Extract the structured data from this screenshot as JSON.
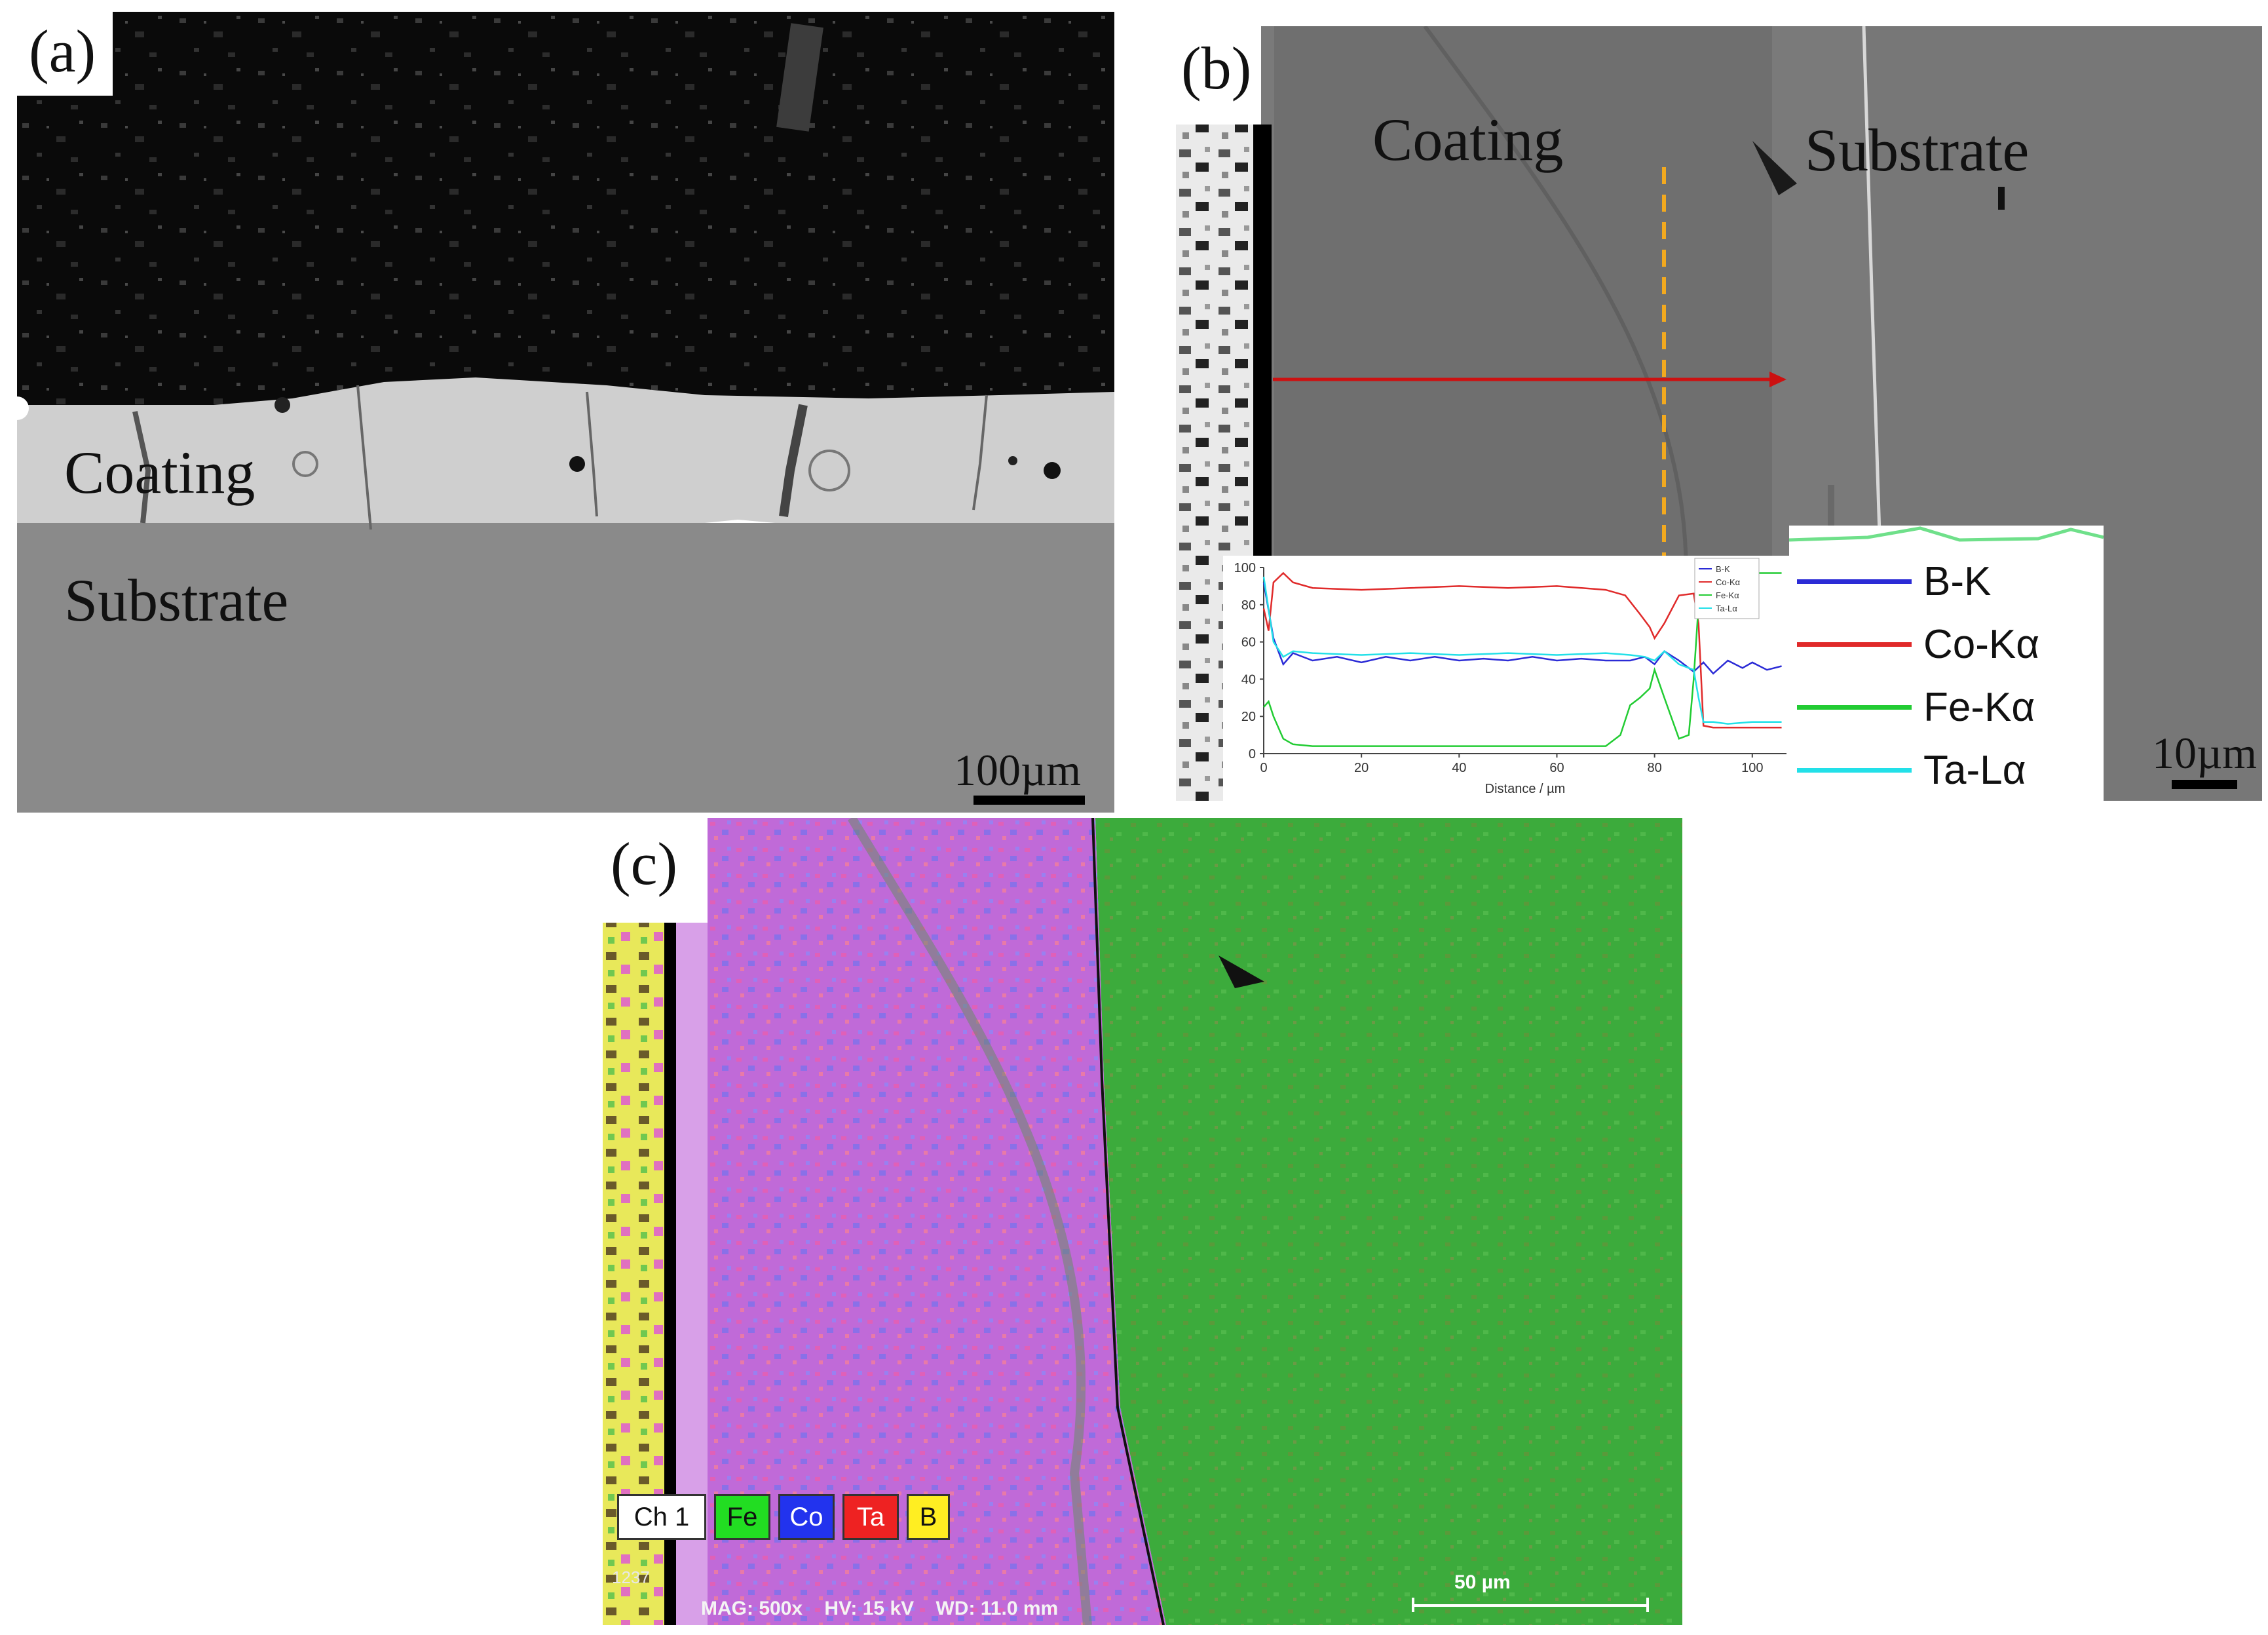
{
  "panel_a": {
    "label": "(a)",
    "coating_label": "Coating",
    "substrate_label": "Substrate",
    "scale_text": "100µm"
  },
  "panel_b": {
    "label": "(b)",
    "coating_label": "Coating",
    "substrate_label": "Substrate",
    "scale_text": "10µm",
    "legend": [
      {
        "name": "B-K",
        "color": "#2b2bd6"
      },
      {
        "name": "Co-Kα",
        "color": "#e02a2a"
      },
      {
        "name": "Fe-Kα",
        "color": "#22cc33"
      },
      {
        "name": "Ta-Lα",
        "color": "#22e0e8"
      }
    ],
    "colors": {
      "scan_arrow": "#cc1111",
      "interface_line": "#f2a91f"
    }
  },
  "panel_c": {
    "label": "(c)",
    "channels": [
      {
        "name": "Ch 1",
        "color": "#ffffff"
      },
      {
        "name": "Fe",
        "color": "#22dd22"
      },
      {
        "name": "Co",
        "color": "#2233ee"
      },
      {
        "name": "Ta",
        "color": "#ee2222"
      },
      {
        "name": "B",
        "color": "#ffee22"
      }
    ],
    "info_id": "1237",
    "info_text": "MAG: 500x    HV: 15 kV    WD: 11.0 mm",
    "scale_text": "50 µm"
  },
  "chart_data": {
    "type": "line",
    "xlabel": "Distance / µm",
    "ylabel": "",
    "xlim": [
      0,
      107
    ],
    "ylim": [
      0,
      100
    ],
    "xticks": [
      0,
      20,
      40,
      60,
      80,
      100
    ],
    "yticks": [
      0,
      20,
      40,
      60,
      80,
      100
    ],
    "legend_position": "top-right",
    "series": [
      {
        "name": "B-K",
        "color": "#2b2bd6",
        "x": [
          0,
          2,
          4,
          6,
          10,
          15,
          20,
          25,
          30,
          35,
          40,
          45,
          50,
          55,
          60,
          65,
          70,
          75,
          78,
          80,
          82,
          85,
          88,
          90,
          92,
          95,
          98,
          100,
          103,
          106
        ],
        "y": [
          92,
          62,
          48,
          54,
          50,
          52,
          49,
          52,
          50,
          52,
          50,
          51,
          50,
          52,
          50,
          51,
          50,
          50,
          52,
          48,
          55,
          50,
          44,
          49,
          43,
          50,
          46,
          49,
          45,
          47
        ]
      },
      {
        "name": "Co-Kα",
        "color": "#e02a2a",
        "x": [
          0,
          1,
          2,
          4,
          6,
          10,
          20,
          30,
          40,
          50,
          60,
          70,
          74,
          77,
          79,
          80,
          82,
          85,
          88,
          89,
          90,
          92,
          95,
          100,
          106
        ],
        "y": [
          78,
          66,
          92,
          97,
          92,
          89,
          88,
          89,
          90,
          89,
          90,
          88,
          85,
          75,
          68,
          62,
          70,
          85,
          86,
          70,
          15,
          14,
          14,
          14,
          14
        ]
      },
      {
        "name": "Fe-Kα",
        "color": "#22cc33",
        "x": [
          0,
          1,
          2,
          4,
          6,
          10,
          20,
          30,
          40,
          50,
          60,
          70,
          73,
          75,
          77,
          79,
          80,
          82,
          85,
          87,
          88,
          89,
          90,
          92,
          95,
          100,
          106
        ],
        "y": [
          25,
          28,
          20,
          8,
          5,
          4,
          4,
          4,
          4,
          4,
          4,
          4,
          10,
          26,
          30,
          35,
          45,
          30,
          8,
          10,
          40,
          80,
          97,
          96,
          97,
          97,
          97
        ]
      },
      {
        "name": "Ta-Lα",
        "color": "#22e0e8",
        "x": [
          0,
          2,
          4,
          6,
          10,
          20,
          30,
          40,
          50,
          60,
          70,
          75,
          78,
          80,
          82,
          85,
          88,
          89,
          90,
          92,
          95,
          100,
          106
        ],
        "y": [
          95,
          60,
          52,
          55,
          54,
          53,
          54,
          53,
          54,
          53,
          54,
          53,
          52,
          50,
          55,
          48,
          45,
          30,
          17,
          17,
          16,
          17,
          17
        ]
      }
    ]
  }
}
